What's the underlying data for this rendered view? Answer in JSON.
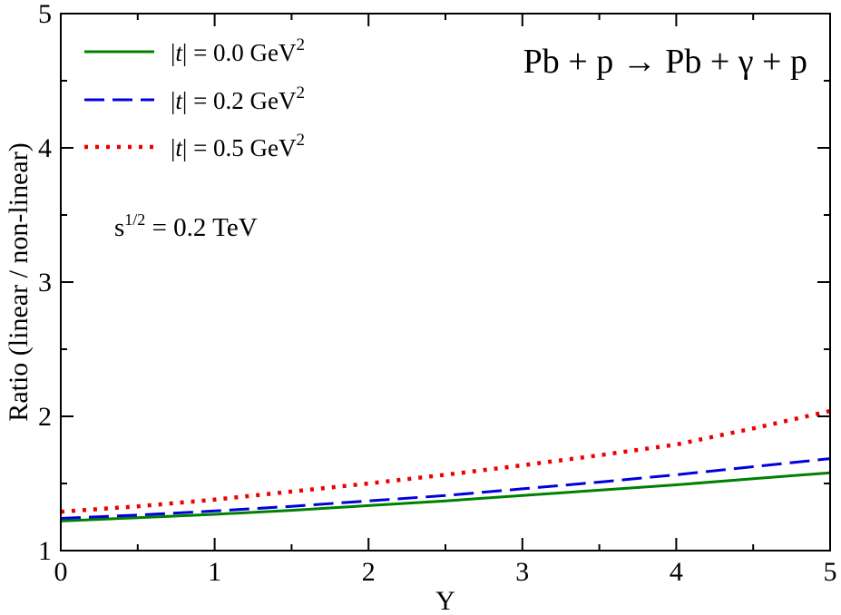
{
  "chart_data": {
    "type": "line",
    "title": "",
    "xlabel": "Y",
    "ylabel": "Ratio (linear / non-linear)",
    "xlim": [
      0,
      5
    ],
    "ylim": [
      1,
      5
    ],
    "xticks": [
      "0",
      "1",
      "2",
      "3",
      "4",
      "5"
    ],
    "yticks": [
      "1",
      "2",
      "3",
      "4",
      "5"
    ],
    "x_minor_step": 0.5,
    "y_minor_step": 0.5,
    "grid": false,
    "legend_position": "top-left",
    "series": [
      {
        "name": "|t| = 0.0 GeV2",
        "label_prefix": "t",
        "label_value": " = 0.0 GeV",
        "label_exponent": "2",
        "color": "#008000",
        "style": "solid",
        "x": [
          0,
          0.5,
          1,
          1.5,
          2,
          2.5,
          3,
          3.5,
          4,
          4.5,
          5
        ],
        "y": [
          1.22,
          1.245,
          1.27,
          1.3,
          1.335,
          1.37,
          1.41,
          1.45,
          1.49,
          1.535,
          1.58
        ]
      },
      {
        "name": "|t| = 0.2 GeV2",
        "label_prefix": "t",
        "label_value": " = 0.2 GeV",
        "label_exponent": "2",
        "color": "#0000dd",
        "style": "dashed",
        "x": [
          0,
          0.5,
          1,
          1.5,
          2,
          2.5,
          3,
          3.5,
          4,
          4.5,
          5
        ],
        "y": [
          1.24,
          1.265,
          1.295,
          1.33,
          1.37,
          1.41,
          1.46,
          1.51,
          1.565,
          1.625,
          1.685
        ]
      },
      {
        "name": "|t| = 0.5 GeV2",
        "label_prefix": "t",
        "label_value": " = 0.5 GeV",
        "label_exponent": "2",
        "color": "#ee0000",
        "style": "dotted",
        "x": [
          0,
          0.5,
          1,
          1.5,
          2,
          2.5,
          3,
          3.5,
          4,
          4.5,
          5
        ],
        "y": [
          1.29,
          1.33,
          1.38,
          1.44,
          1.5,
          1.565,
          1.635,
          1.71,
          1.79,
          1.91,
          2.04
        ]
      }
    ],
    "annotations": {
      "reaction": "Pb + p → Pb + γ + p",
      "energy_base": "s",
      "energy_exponent": "1/2",
      "energy_value": " = 0.2 TeV"
    }
  }
}
